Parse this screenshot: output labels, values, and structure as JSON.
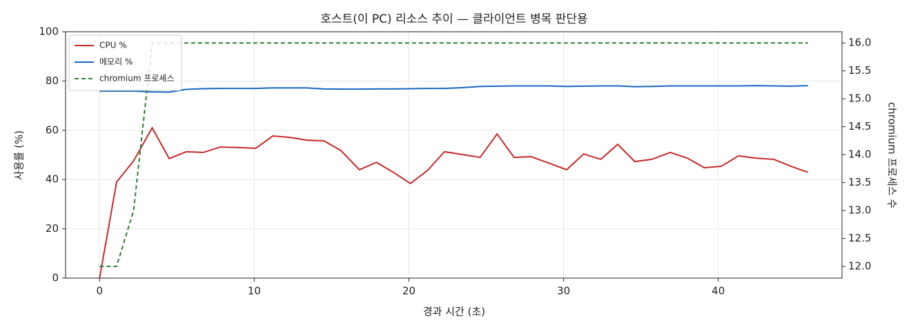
{
  "chart_data": {
    "type": "line",
    "title": "호스트(이 PC) 리소스 추이 — 클라이언트 병목 판단용",
    "x_label": "경과 시간 (초)",
    "y_label": "사용률 (%)",
    "y2_label": "chromium 프로세스 수",
    "x": [
      0,
      1.1,
      2.2,
      3.4,
      4.5,
      5.6,
      6.7,
      7.8,
      8.9,
      10.1,
      11.2,
      12.3,
      13.4,
      14.5,
      15.6,
      16.8,
      17.9,
      19.0,
      20.1,
      21.2,
      22.3,
      23.5,
      24.6,
      25.7,
      26.8,
      27.9,
      29.0,
      30.2,
      31.3,
      32.4,
      33.5,
      34.6,
      35.7,
      36.9,
      38.0,
      39.1,
      40.2,
      41.3,
      42.4,
      43.6,
      44.7,
      45.8
    ],
    "series": [
      {
        "name": "CPU %",
        "color": "#c62828",
        "values": [
          0,
          39,
          47.6,
          61,
          48.5,
          51.3,
          51,
          53.2,
          53,
          52.7,
          57.7,
          57.1,
          56,
          55.7,
          51.8,
          44,
          47,
          42.9,
          38.4,
          43.7,
          51.3,
          50.1,
          49,
          58.5,
          49,
          49.3,
          46.8,
          44,
          50.4,
          48.2,
          54.3,
          47.3,
          48.2,
          51,
          48.7,
          44.8,
          45.4,
          49.6,
          48.7,
          48.2,
          45.4,
          42.9
        ]
      },
      {
        "name": "메모리 %",
        "color": "#1565c0",
        "values": [
          75.9,
          75.9,
          75.9,
          75.6,
          75.5,
          76.6,
          76.9,
          77.0,
          77.0,
          77.0,
          77.2,
          77.2,
          77.2,
          76.8,
          76.7,
          76.7,
          76.8,
          76.8,
          76.9,
          77.0,
          77.0,
          77.3,
          77.8,
          77.9,
          78.0,
          78.0,
          78.0,
          77.8,
          77.9,
          78.0,
          78.0,
          77.7,
          77.8,
          78.0,
          78.0,
          78.0,
          78.0,
          78.0,
          78.1,
          78.0,
          77.9,
          78.1
        ]
      },
      {
        "name": "chromium 프로세스",
        "color": "#2e7d32",
        "axis": "y2",
        "dashed": true,
        "values": [
          12,
          12,
          13,
          16,
          16,
          16,
          16,
          16,
          16,
          16,
          16,
          16,
          16,
          16,
          16,
          16,
          16,
          16,
          16,
          16,
          16,
          16,
          16,
          16,
          16,
          16,
          16,
          16,
          16,
          16,
          16,
          16,
          16,
          16,
          16,
          16,
          16,
          16,
          16,
          16,
          16,
          16
        ]
      }
    ],
    "xlim": [
      -2.2,
      48.0
    ],
    "xticks": [
      0,
      10,
      20,
      30,
      40
    ],
    "ylim": [
      0,
      100
    ],
    "yticks": [
      0,
      20,
      40,
      60,
      80,
      100
    ],
    "y2lim": [
      11.79,
      16.2
    ],
    "y2ticks": [
      {
        "value": 12,
        "label": "12.0"
      },
      12.5,
      {
        "value": 13,
        "label": "13.0"
      },
      13.5,
      {
        "value": 14,
        "label": "14.0"
      },
      14.5,
      {
        "value": 15,
        "label": "15.0"
      },
      15.5,
      {
        "value": 16,
        "label": "16.0"
      }
    ],
    "grid": true,
    "legend": "upper left"
  }
}
